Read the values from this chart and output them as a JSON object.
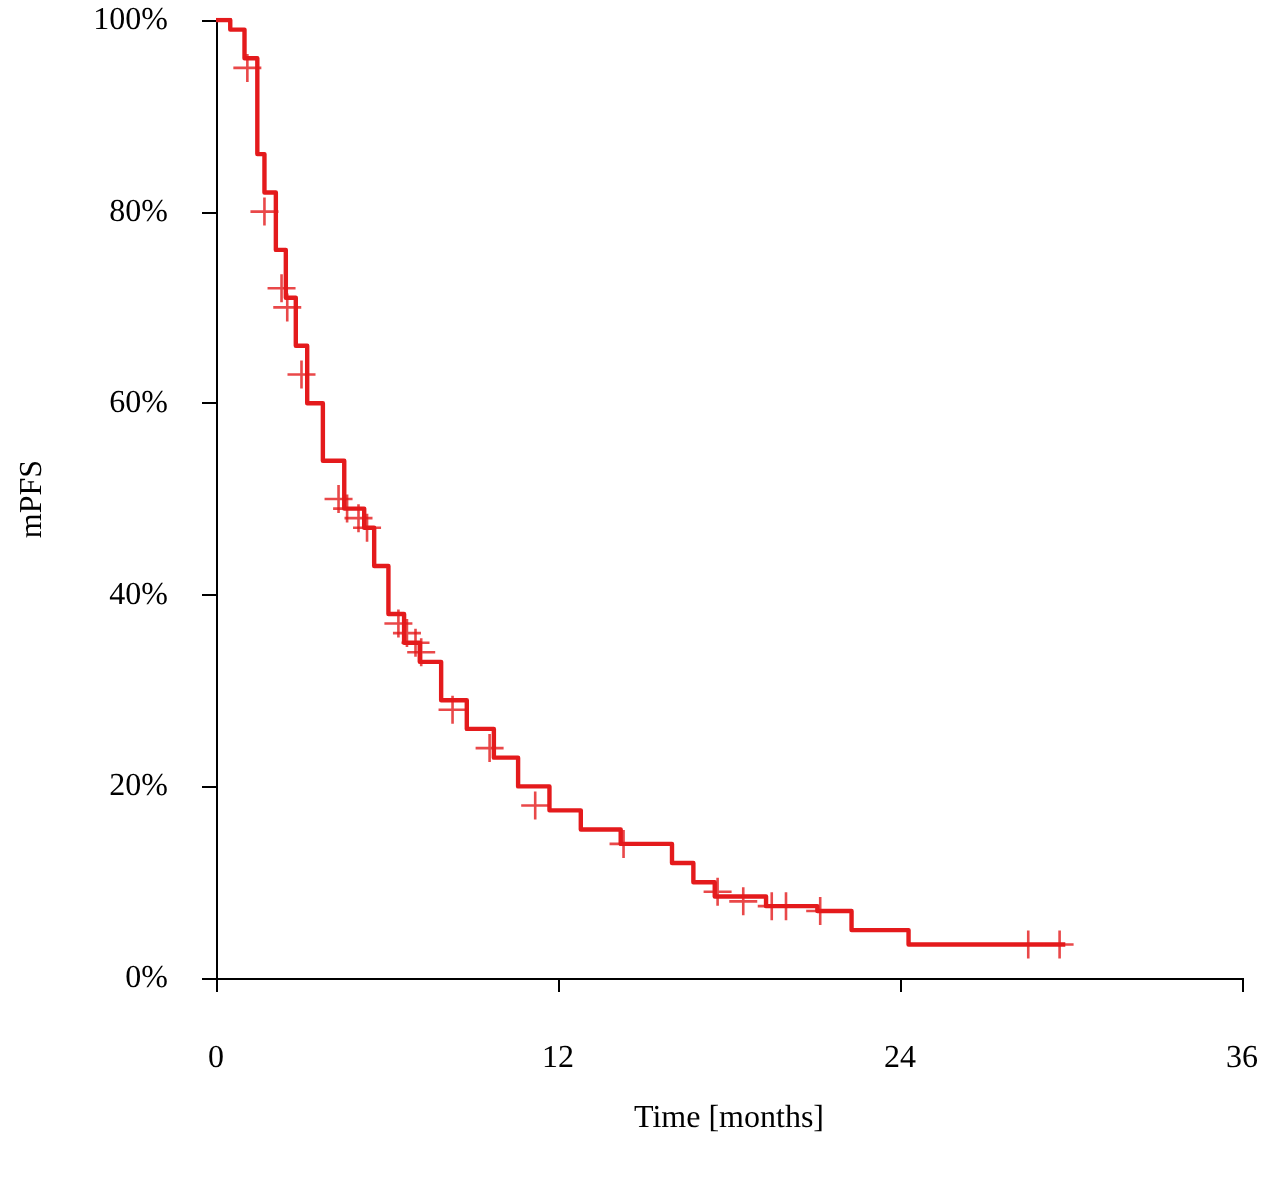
{
  "chart_data": {
    "type": "step",
    "xlabel": "Time [months]",
    "ylabel": "mPFS",
    "xlim": [
      0,
      36
    ],
    "xticks": [
      0,
      12,
      24,
      36
    ],
    "ylim": [
      0,
      100
    ],
    "yticks": [
      {
        "value": 0,
        "label": "0%"
      },
      {
        "value": 20,
        "label": "20%"
      },
      {
        "value": 40,
        "label": "40%"
      },
      {
        "value": 60,
        "label": "60%"
      },
      {
        "value": 80,
        "label": "80%"
      },
      {
        "value": 100,
        "label": "100%"
      }
    ],
    "grid": false,
    "line_style": "solid",
    "series": [
      {
        "color": "#e41a1c",
        "marker": "none",
        "x": [
          0,
          0.5,
          1.0,
          1.45,
          1.7,
          2.1,
          2.45,
          2.8,
          3.2,
          3.75,
          4.5,
          5.2,
          5.55,
          6.05,
          6.6,
          7.15,
          7.9,
          8.8,
          9.75,
          10.6,
          11.7,
          12.8,
          14.2,
          16.0,
          16.75,
          17.5,
          19.3,
          21.1,
          22.3,
          24.3,
          29.8
        ],
        "values": [
          100,
          99,
          96,
          86,
          82,
          76,
          71,
          66,
          60,
          54,
          49,
          47,
          43,
          38,
          35,
          33,
          29,
          26,
          23,
          20,
          17.5,
          15.5,
          14,
          12,
          10,
          8.5,
          7.5,
          7,
          5,
          3.5,
          3.5
        ]
      },
      {
        "type": "scatter",
        "color": "#e41a1c",
        "marker": "cross",
        "x": [
          1.1,
          1.7,
          2.3,
          2.5,
          3.0,
          4.3,
          4.6,
          5.0,
          5.3,
          6.4,
          6.7,
          7.0,
          7.2,
          8.3,
          9.6,
          11.2,
          14.3,
          17.6,
          18.5,
          19.5,
          20.0,
          21.2,
          28.5,
          29.6
        ],
        "values": [
          95,
          80,
          72,
          70,
          63,
          50,
          49,
          48,
          47,
          37,
          36,
          35,
          34,
          28,
          24,
          18,
          14,
          9,
          8,
          7.5,
          7.5,
          7,
          3.5,
          3.5
        ]
      }
    ]
  }
}
